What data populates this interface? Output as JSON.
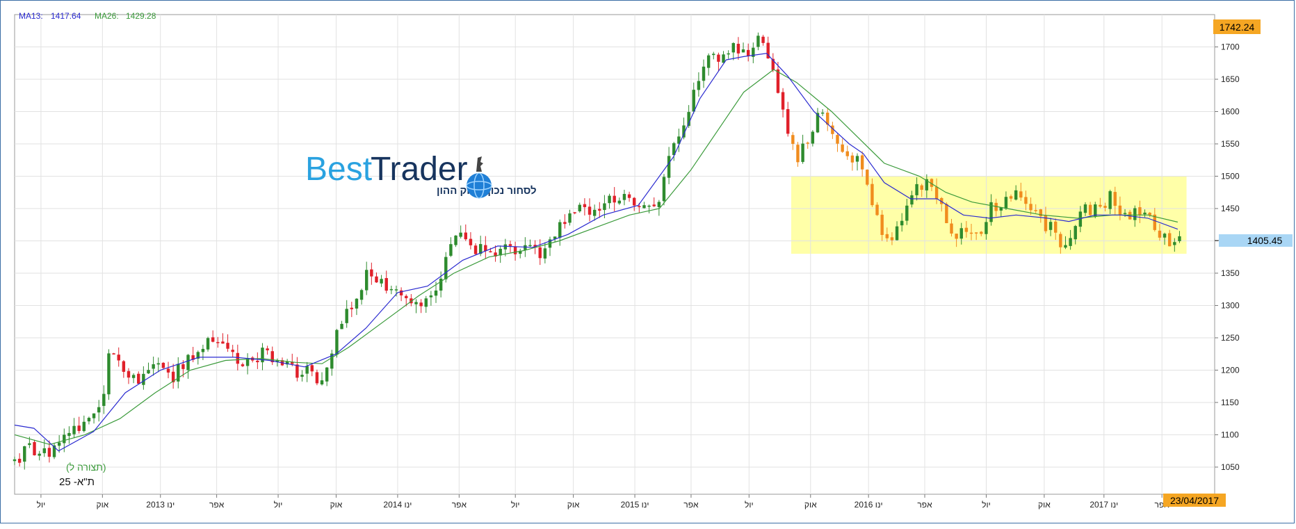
{
  "legend": {
    "ma13_label": "MA13:",
    "ma13_value": "1417.64",
    "ma26_label": "MA26:",
    "ma26_value": "1429.28",
    "ma13_color": "#2a2ad0",
    "ma26_color": "#3a9a3a"
  },
  "logo": {
    "brand_best": "Best",
    "brand_trader": "Trader",
    "tagline": "לסחור נכון בשוק ההון"
  },
  "instrument": {
    "name": "ת\"א- 25",
    "view_label": "(תצורה ל)"
  },
  "badges": {
    "max_price": "1742.24",
    "last_price": "1405.45",
    "last_date": "23/04/2017",
    "badge_color": "#f5a623",
    "last_price_color": "#a9d6f5"
  },
  "chart_data": {
    "type": "candlestick",
    "y_ticks": [
      1050,
      1100,
      1150,
      1200,
      1250,
      1300,
      1350,
      1400,
      1450,
      1500,
      1550,
      1600,
      1650,
      1700
    ],
    "ylim": [
      1008,
      1750
    ],
    "xlim": [
      0,
      68.3
    ],
    "x_ticks": [
      {
        "pos": 1.5,
        "label": "יול"
      },
      {
        "pos": 5.0,
        "label": "אוק"
      },
      {
        "pos": 8.3,
        "label": "ינו 2013"
      },
      {
        "pos": 11.5,
        "label": "אפר"
      },
      {
        "pos": 15.0,
        "label": "יול"
      },
      {
        "pos": 18.3,
        "label": "אוק"
      },
      {
        "pos": 21.8,
        "label": "ינו 2014"
      },
      {
        "pos": 25.3,
        "label": "אפר"
      },
      {
        "pos": 28.5,
        "label": "יול"
      },
      {
        "pos": 31.8,
        "label": "אוק"
      },
      {
        "pos": 35.3,
        "label": "ינו 2015"
      },
      {
        "pos": 38.5,
        "label": "אפר"
      },
      {
        "pos": 41.8,
        "label": "יול"
      },
      {
        "pos": 45.3,
        "label": "אוק"
      },
      {
        "pos": 48.6,
        "label": "ינו 2016"
      },
      {
        "pos": 51.8,
        "label": "אפר"
      },
      {
        "pos": 55.3,
        "label": "יול"
      },
      {
        "pos": 58.6,
        "label": "אוק"
      },
      {
        "pos": 62.0,
        "label": "ינו 2017"
      },
      {
        "pos": 65.3,
        "label": "אפר"
      }
    ],
    "highlight_zone": {
      "x_from": 44.2,
      "x_to": 66.7,
      "y_from": 1380,
      "y_to": 1500,
      "color": "#ffff99"
    },
    "path": [
      [
        0,
        1060
      ],
      [
        1,
        1080
      ],
      [
        2,
        1070
      ],
      [
        3,
        1110
      ],
      [
        4,
        1120
      ],
      [
        5,
        1140
      ],
      [
        5.4,
        1225
      ],
      [
        6.4,
        1200
      ],
      [
        7,
        1180
      ],
      [
        8,
        1220
      ],
      [
        9,
        1190
      ],
      [
        10,
        1220
      ],
      [
        11,
        1245
      ],
      [
        12,
        1230
      ],
      [
        13,
        1210
      ],
      [
        14,
        1225
      ],
      [
        15,
        1215
      ],
      [
        16,
        1195
      ],
      [
        17,
        1200
      ],
      [
        17.3,
        1160
      ],
      [
        17.8,
        1210
      ],
      [
        18.6,
        1280
      ],
      [
        19.2,
        1300
      ],
      [
        20,
        1350
      ],
      [
        21,
        1330
      ],
      [
        22,
        1320
      ],
      [
        23,
        1290
      ],
      [
        23.7,
        1310
      ],
      [
        24.5,
        1370
      ],
      [
        25,
        1410
      ],
      [
        26,
        1390
      ],
      [
        27,
        1380
      ],
      [
        28,
        1395
      ],
      [
        29,
        1385
      ],
      [
        30,
        1380
      ],
      [
        31,
        1420
      ],
      [
        32,
        1450
      ],
      [
        33,
        1440
      ],
      [
        34,
        1470
      ],
      [
        35,
        1460
      ],
      [
        36,
        1450
      ],
      [
        36.5,
        1450
      ],
      [
        37,
        1510
      ],
      [
        38,
        1570
      ],
      [
        38.6,
        1620
      ],
      [
        39.5,
        1690
      ],
      [
        40.2,
        1680
      ],
      [
        41,
        1700
      ],
      [
        42,
        1690
      ],
      [
        42.5,
        1720
      ],
      [
        43.2,
        1660
      ],
      [
        43.8,
        1600
      ],
      [
        44.5,
        1520
      ],
      [
        45.2,
        1560
      ],
      [
        45.8,
        1600
      ],
      [
        46.6,
        1570
      ],
      [
        47.4,
        1530
      ],
      [
        48.2,
        1520
      ],
      [
        48.9,
        1440
      ],
      [
        49.8,
        1400
      ],
      [
        50.5,
        1440
      ],
      [
        51.1,
        1480
      ],
      [
        52,
        1490
      ],
      [
        52.6,
        1460
      ],
      [
        53.3,
        1410
      ],
      [
        54.2,
        1410
      ],
      [
        55,
        1420
      ],
      [
        55.6,
        1450
      ],
      [
        56.4,
        1460
      ],
      [
        57.1,
        1470
      ],
      [
        57.9,
        1440
      ],
      [
        58.5,
        1430
      ],
      [
        59.3,
        1410
      ],
      [
        59.7,
        1380
      ],
      [
        60.2,
        1420
      ],
      [
        60.9,
        1450
      ],
      [
        61.7,
        1450
      ],
      [
        62.4,
        1470
      ],
      [
        63.2,
        1440
      ],
      [
        64,
        1450
      ],
      [
        64.6,
        1440
      ],
      [
        65.2,
        1410
      ],
      [
        65.8,
        1390
      ],
      [
        66.3,
        1405
      ]
    ],
    "ma13": [
      [
        0,
        1115
      ],
      [
        1.1,
        1110
      ],
      [
        2.5,
        1075
      ],
      [
        4.5,
        1105
      ],
      [
        6.3,
        1165
      ],
      [
        8.3,
        1200
      ],
      [
        10.5,
        1220
      ],
      [
        12.5,
        1220
      ],
      [
        14.5,
        1215
      ],
      [
        16.5,
        1205
      ],
      [
        18.3,
        1225
      ],
      [
        20,
        1265
      ],
      [
        21.8,
        1320
      ],
      [
        23.5,
        1330
      ],
      [
        25.5,
        1370
      ],
      [
        27.5,
        1392
      ],
      [
        29.5,
        1390
      ],
      [
        31.5,
        1410
      ],
      [
        33.5,
        1440
      ],
      [
        35.5,
        1455
      ],
      [
        37.5,
        1530
      ],
      [
        39,
        1620
      ],
      [
        40.5,
        1680
      ],
      [
        41.5,
        1685
      ],
      [
        42.8,
        1690
      ],
      [
        44,
        1655
      ],
      [
        45.5,
        1600
      ],
      [
        46.5,
        1575
      ],
      [
        47.5,
        1550
      ],
      [
        48.3,
        1535
      ],
      [
        49.5,
        1490
      ],
      [
        51,
        1465
      ],
      [
        52.5,
        1465
      ],
      [
        54,
        1440
      ],
      [
        55.5,
        1435
      ],
      [
        57,
        1440
      ],
      [
        58.8,
        1435
      ],
      [
        60,
        1430
      ],
      [
        61.5,
        1440
      ],
      [
        63,
        1440
      ],
      [
        64.5,
        1435
      ],
      [
        66.2,
        1418
      ]
    ],
    "ma26": [
      [
        0,
        1100
      ],
      [
        2,
        1085
      ],
      [
        4,
        1100
      ],
      [
        6,
        1125
      ],
      [
        8,
        1165
      ],
      [
        10,
        1200
      ],
      [
        12,
        1215
      ],
      [
        14,
        1218
      ],
      [
        16,
        1212
      ],
      [
        17.5,
        1210
      ],
      [
        19,
        1235
      ],
      [
        21,
        1275
      ],
      [
        23,
        1315
      ],
      [
        25,
        1350
      ],
      [
        27,
        1375
      ],
      [
        29,
        1385
      ],
      [
        31,
        1400
      ],
      [
        33,
        1420
      ],
      [
        35,
        1440
      ],
      [
        36.7,
        1450
      ],
      [
        38.5,
        1510
      ],
      [
        40,
        1570
      ],
      [
        41.5,
        1630
      ],
      [
        43.2,
        1665
      ],
      [
        44.5,
        1645
      ],
      [
        46.5,
        1600
      ],
      [
        48,
        1560
      ],
      [
        49.5,
        1520
      ],
      [
        51.5,
        1500
      ],
      [
        53,
        1475
      ],
      [
        54.5,
        1460
      ],
      [
        56.5,
        1450
      ],
      [
        58.5,
        1440
      ],
      [
        60.5,
        1435
      ],
      [
        62.5,
        1440
      ],
      [
        64.5,
        1440
      ],
      [
        66.2,
        1429
      ]
    ]
  }
}
